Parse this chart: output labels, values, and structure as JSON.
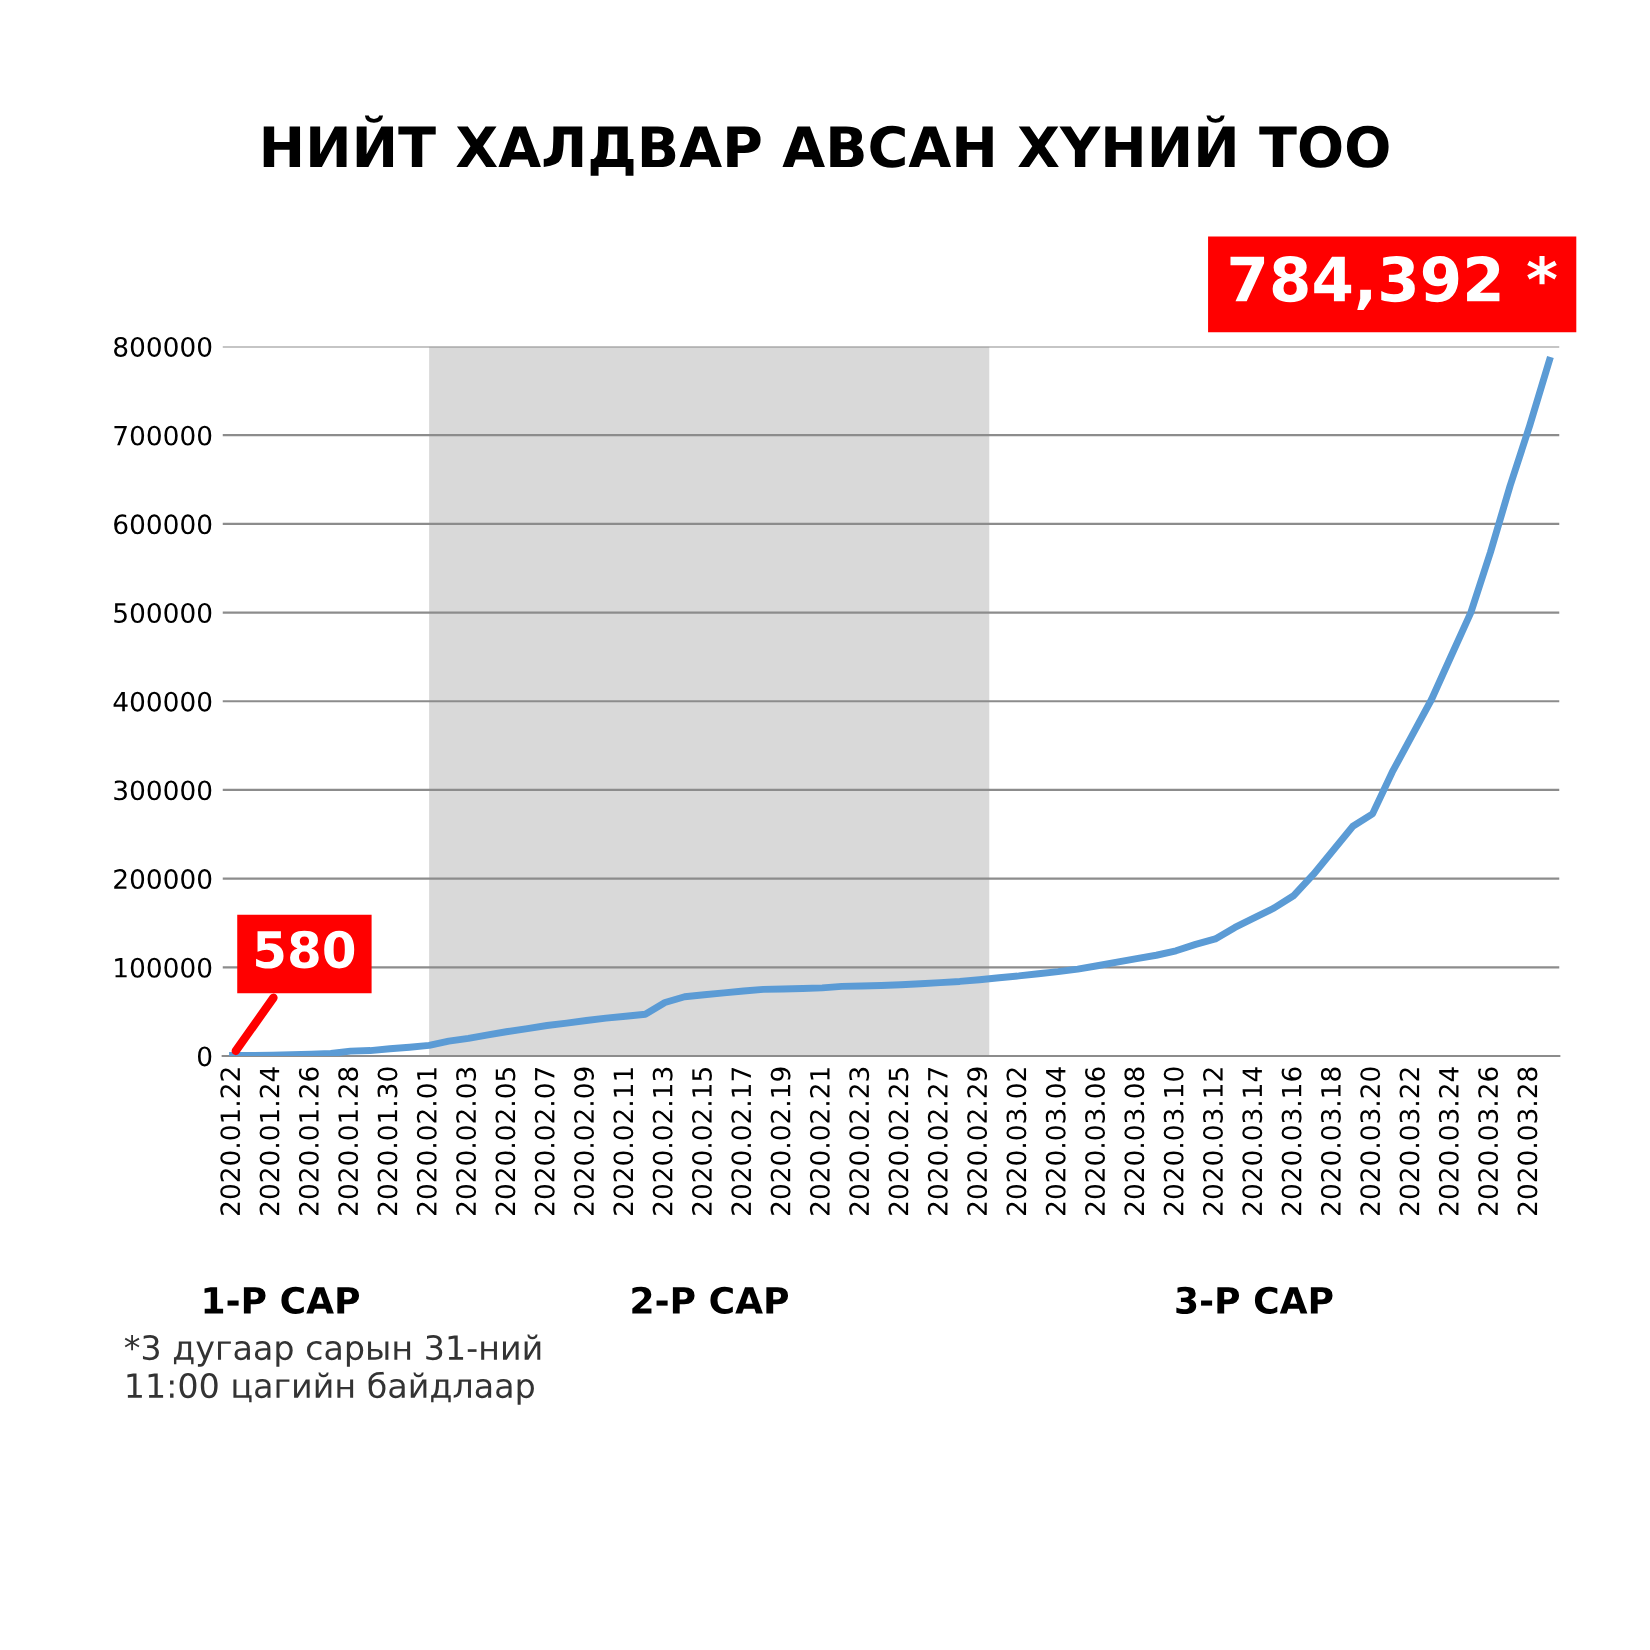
{
  "chart_data": {
    "type": "line",
    "title": "НИЙТ ХАЛДВАР АВСАН ХҮНИЙ ТОО",
    "categories": [
      "2020.01.22",
      null,
      "2020.01.24",
      null,
      "2020.01.26",
      null,
      "2020.01.28",
      null,
      "2020.01.30",
      null,
      "2020.02.01",
      null,
      "2020.02.03",
      null,
      "2020.02.05",
      null,
      "2020.02.07",
      null,
      "2020.02.09",
      null,
      "2020.02.11",
      null,
      "2020.02.13",
      null,
      "2020.02.15",
      null,
      "2020.02.17",
      null,
      "2020.02.19",
      null,
      "2020.02.21",
      null,
      "2020.02.23",
      null,
      "2020.02.25",
      null,
      "2020.02.27",
      null,
      "2020.02.29",
      null,
      "2020.03.02",
      null,
      "2020.03.04",
      null,
      "2020.03.06",
      null,
      "2020.03.08",
      null,
      "2020.03.10",
      null,
      "2020.03.12",
      null,
      "2020.03.14",
      null,
      "2020.03.16",
      null,
      "2020.03.18",
      null,
      "2020.03.20",
      null,
      "2020.03.22",
      null,
      "2020.03.24",
      null,
      "2020.03.26",
      null,
      "2020.03.28",
      null
    ],
    "series": [
      {
        "color": "#5b9bd5",
        "values": [
          580,
          650,
          940,
          1400,
          2100,
          2900,
          5500,
          6100,
          8200,
          9900,
          12000,
          16800,
          19900,
          23900,
          27600,
          30800,
          34400,
          37100,
          40100,
          42700,
          44800,
          47000,
          60300,
          66800,
          69000,
          71200,
          73200,
          75100,
          75600,
          76200,
          76800,
          78500,
          78900,
          79500,
          80400,
          81400,
          82700,
          84100,
          86000,
          88300,
          90300,
          92800,
          95100,
          97900,
          101800,
          105800,
          109800,
          113600,
          118600,
          125900,
          132000,
          145000,
          156000,
          167000,
          181000,
          205000,
          232000,
          259000,
          273000,
          320000,
          361000,
          402000,
          451000,
          500000,
          568000,
          643000,
          711000,
          784392
        ]
      }
    ],
    "ylim": [
      0,
      800000
    ],
    "yticks": [
      0,
      100000,
      200000,
      300000,
      400000,
      500000,
      600000,
      700000,
      800000
    ],
    "grid": "y",
    "bands": [
      {
        "axis": "x",
        "from": "2020.02.01",
        "to": "2020.02.29",
        "color": "#d9d9d9"
      }
    ],
    "annotations": [
      {
        "text": "580",
        "x": "2020.01.22",
        "y": 580
      },
      "784,392 *",
      "1-Р САР",
      "2-Р САР",
      "3-Р САР",
      "*3 дугаар сарын 31-ний\n11:00 цагийн байдлаар"
    ]
  }
}
